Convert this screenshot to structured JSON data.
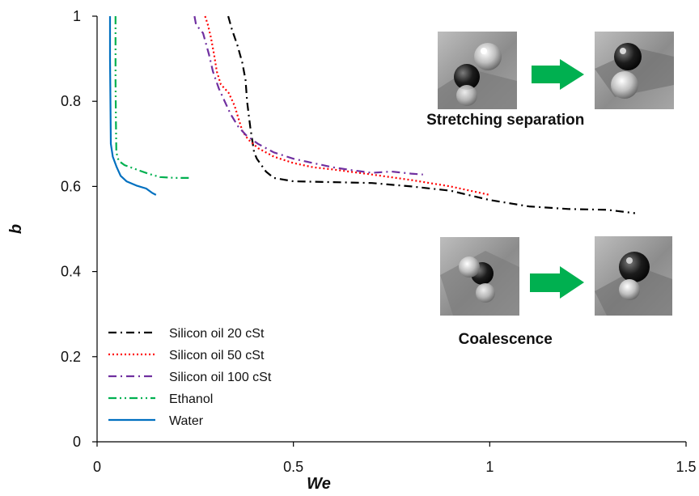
{
  "chart_data": {
    "type": "line",
    "xlabel": "We",
    "ylabel": "b",
    "xlim": [
      0,
      1.5
    ],
    "ylim": [
      0,
      1
    ],
    "x_ticks": [
      0,
      0.5,
      1,
      1.5
    ],
    "x_tick_labels": [
      "0",
      "0.5",
      "1",
      "1.5"
    ],
    "y_ticks": [
      0,
      0.2,
      0.4,
      0.6,
      0.8,
      1
    ],
    "y_tick_labels": [
      "0",
      "0.2",
      "0.4",
      "0.6",
      "0.8",
      "1"
    ],
    "grid": false,
    "legend_position": "bottom-left",
    "series": [
      {
        "name": "Silicon oil 20 cSt",
        "color": "#000000",
        "dash": "longdash-dot",
        "points": [
          [
            0.334,
            1.0
          ],
          [
            0.343,
            0.97
          ],
          [
            0.358,
            0.93
          ],
          [
            0.37,
            0.89
          ],
          [
            0.378,
            0.85
          ],
          [
            0.382,
            0.8
          ],
          [
            0.39,
            0.74
          ],
          [
            0.4,
            0.68
          ],
          [
            0.407,
            0.665
          ],
          [
            0.43,
            0.635
          ],
          [
            0.45,
            0.62
          ],
          [
            0.5,
            0.612
          ],
          [
            0.6,
            0.61
          ],
          [
            0.7,
            0.608
          ],
          [
            0.8,
            0.6
          ],
          [
            0.9,
            0.59
          ],
          [
            1.0,
            0.568
          ],
          [
            1.1,
            0.553
          ],
          [
            1.2,
            0.547
          ],
          [
            1.3,
            0.545
          ],
          [
            1.37,
            0.537
          ]
        ]
      },
      {
        "name": "Silicon oil 50 cSt",
        "color": "#ff0000",
        "dash": "dotted",
        "points": [
          [
            0.275,
            1.0
          ],
          [
            0.282,
            0.98
          ],
          [
            0.29,
            0.95
          ],
          [
            0.298,
            0.91
          ],
          [
            0.305,
            0.87
          ],
          [
            0.315,
            0.84
          ],
          [
            0.335,
            0.82
          ],
          [
            0.35,
            0.79
          ],
          [
            0.36,
            0.76
          ],
          [
            0.37,
            0.73
          ],
          [
            0.385,
            0.71
          ],
          [
            0.41,
            0.69
          ],
          [
            0.45,
            0.67
          ],
          [
            0.5,
            0.655
          ],
          [
            0.55,
            0.645
          ],
          [
            0.6,
            0.64
          ],
          [
            0.7,
            0.628
          ],
          [
            0.8,
            0.615
          ],
          [
            0.9,
            0.6
          ],
          [
            1.0,
            0.58
          ]
        ]
      },
      {
        "name": "Silicon oil 100 cSt",
        "color": "#7030a0",
        "dash": "longdash-dot",
        "points": [
          [
            0.248,
            1.0
          ],
          [
            0.252,
            0.98
          ],
          [
            0.27,
            0.96
          ],
          [
            0.285,
            0.91
          ],
          [
            0.295,
            0.87
          ],
          [
            0.31,
            0.83
          ],
          [
            0.325,
            0.8
          ],
          [
            0.34,
            0.77
          ],
          [
            0.36,
            0.74
          ],
          [
            0.38,
            0.72
          ],
          [
            0.41,
            0.7
          ],
          [
            0.45,
            0.68
          ],
          [
            0.5,
            0.665
          ],
          [
            0.55,
            0.655
          ],
          [
            0.6,
            0.645
          ],
          [
            0.65,
            0.638
          ],
          [
            0.7,
            0.632
          ],
          [
            0.75,
            0.635
          ],
          [
            0.8,
            0.63
          ],
          [
            0.83,
            0.628
          ]
        ]
      },
      {
        "name": "Ethanol",
        "color": "#00b050",
        "dash": "dash-dot-dot",
        "points": [
          [
            0.047,
            1.0
          ],
          [
            0.047,
            0.95
          ],
          [
            0.047,
            0.85
          ],
          [
            0.048,
            0.75
          ],
          [
            0.049,
            0.68
          ],
          [
            0.055,
            0.66
          ],
          [
            0.07,
            0.65
          ],
          [
            0.1,
            0.64
          ],
          [
            0.13,
            0.63
          ],
          [
            0.16,
            0.622
          ],
          [
            0.2,
            0.62
          ],
          [
            0.235,
            0.62
          ]
        ]
      },
      {
        "name": "Water",
        "color": "#0070c0",
        "dash": "solid",
        "points": [
          [
            0.033,
            1.0
          ],
          [
            0.033,
            0.9
          ],
          [
            0.034,
            0.8
          ],
          [
            0.035,
            0.7
          ],
          [
            0.04,
            0.67
          ],
          [
            0.05,
            0.645
          ],
          [
            0.06,
            0.625
          ],
          [
            0.075,
            0.612
          ],
          [
            0.1,
            0.602
          ],
          [
            0.125,
            0.595
          ],
          [
            0.14,
            0.585
          ],
          [
            0.15,
            0.58
          ]
        ]
      }
    ],
    "annotations": [
      {
        "text": "Stretching separation",
        "x": 1.04,
        "y": 0.745
      },
      {
        "text": "Coalescence",
        "x": 1.04,
        "y": 0.23
      }
    ]
  },
  "colors": {
    "arrow": "#00b050",
    "photo_bg": "#8f8f8f"
  },
  "icons": [
    "droplet-photo",
    "right-arrow-icon"
  ]
}
